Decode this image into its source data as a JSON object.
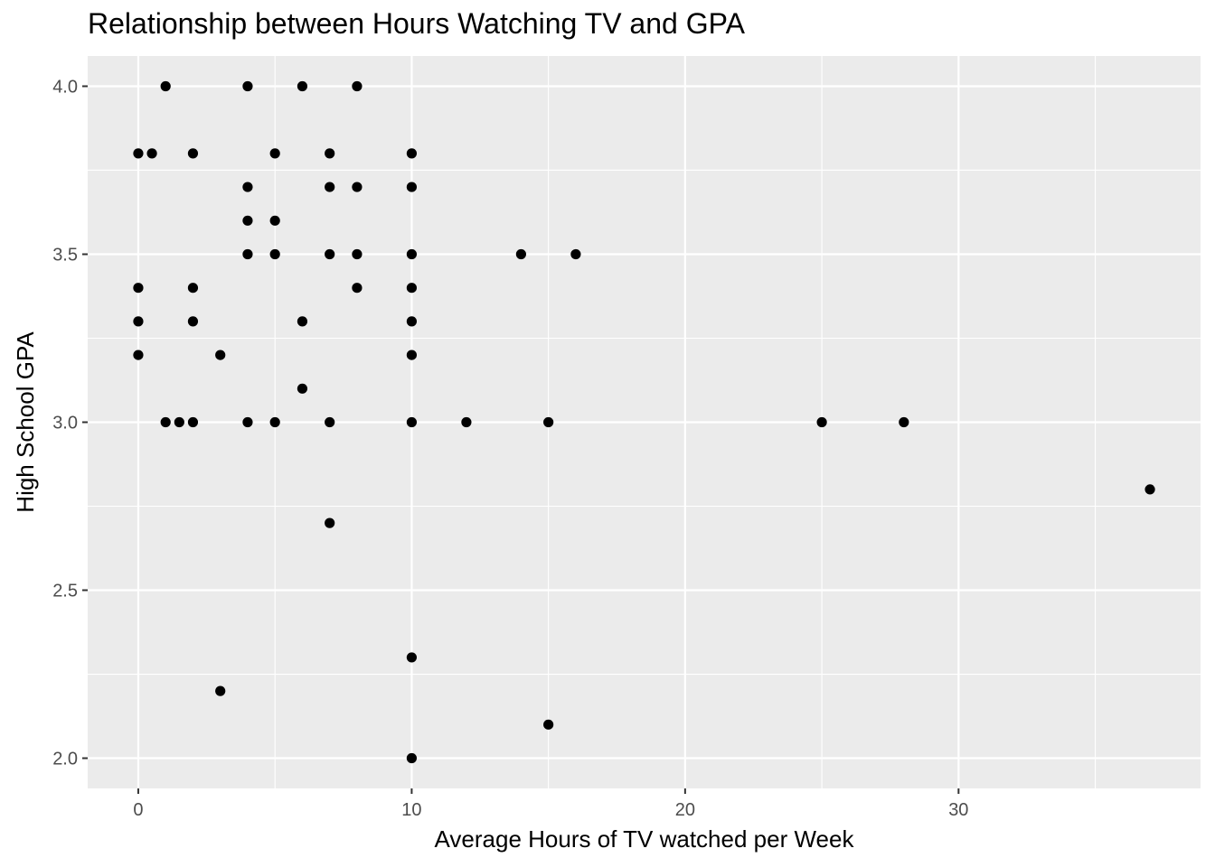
{
  "chart_data": {
    "type": "scatter",
    "title": "Relationship between Hours Watching TV and GPA",
    "xlabel": "Average Hours of TV watched per Week",
    "ylabel": "High School GPA",
    "xlim": [
      -1.85,
      38.85
    ],
    "ylim": [
      1.91,
      4.09
    ],
    "x_ticks": [
      0,
      10,
      20,
      30
    ],
    "x_tick_labels": [
      "0",
      "10",
      "20",
      "30"
    ],
    "x_minor_ticks": [
      5,
      15,
      25,
      35
    ],
    "y_ticks": [
      2.0,
      2.5,
      3.0,
      3.5,
      4.0
    ],
    "y_tick_labels": [
      "2.0",
      "2.5",
      "3.0",
      "3.5",
      "4.0"
    ],
    "y_minor_ticks": [
      2.25,
      2.75,
      3.25,
      3.75
    ],
    "grid": true,
    "legend": "none",
    "colors": {
      "panel": "#ebebeb",
      "grid": "#ffffff",
      "point": "#000000"
    },
    "points": [
      {
        "x": 1,
        "y": 4.0
      },
      {
        "x": 4,
        "y": 4.0
      },
      {
        "x": 6,
        "y": 4.0
      },
      {
        "x": 8,
        "y": 4.0
      },
      {
        "x": 0,
        "y": 3.8
      },
      {
        "x": 0.5,
        "y": 3.8
      },
      {
        "x": 2,
        "y": 3.8
      },
      {
        "x": 5,
        "y": 3.8
      },
      {
        "x": 7,
        "y": 3.8
      },
      {
        "x": 10,
        "y": 3.8
      },
      {
        "x": 4,
        "y": 3.7
      },
      {
        "x": 7,
        "y": 3.7
      },
      {
        "x": 8,
        "y": 3.7
      },
      {
        "x": 10,
        "y": 3.7
      },
      {
        "x": 4,
        "y": 3.6
      },
      {
        "x": 5,
        "y": 3.6
      },
      {
        "x": 4,
        "y": 3.5
      },
      {
        "x": 5,
        "y": 3.5
      },
      {
        "x": 7,
        "y": 3.5
      },
      {
        "x": 8,
        "y": 3.5
      },
      {
        "x": 10,
        "y": 3.5
      },
      {
        "x": 14,
        "y": 3.5
      },
      {
        "x": 16,
        "y": 3.5
      },
      {
        "x": 0,
        "y": 3.4
      },
      {
        "x": 2,
        "y": 3.4
      },
      {
        "x": 8,
        "y": 3.4
      },
      {
        "x": 10,
        "y": 3.4
      },
      {
        "x": 0,
        "y": 3.3
      },
      {
        "x": 2,
        "y": 3.3
      },
      {
        "x": 6,
        "y": 3.3
      },
      {
        "x": 10,
        "y": 3.3
      },
      {
        "x": 0,
        "y": 3.2
      },
      {
        "x": 3,
        "y": 3.2
      },
      {
        "x": 10,
        "y": 3.2
      },
      {
        "x": 6,
        "y": 3.1
      },
      {
        "x": 1,
        "y": 3.0
      },
      {
        "x": 1.5,
        "y": 3.0
      },
      {
        "x": 2,
        "y": 3.0
      },
      {
        "x": 4,
        "y": 3.0
      },
      {
        "x": 5,
        "y": 3.0
      },
      {
        "x": 7,
        "y": 3.0
      },
      {
        "x": 10,
        "y": 3.0
      },
      {
        "x": 12,
        "y": 3.0
      },
      {
        "x": 15,
        "y": 3.0
      },
      {
        "x": 25,
        "y": 3.0
      },
      {
        "x": 28,
        "y": 3.0
      },
      {
        "x": 37,
        "y": 2.8
      },
      {
        "x": 7,
        "y": 2.7
      },
      {
        "x": 10,
        "y": 2.3
      },
      {
        "x": 3,
        "y": 2.2
      },
      {
        "x": 15,
        "y": 2.1
      },
      {
        "x": 10,
        "y": 2.0
      }
    ]
  }
}
